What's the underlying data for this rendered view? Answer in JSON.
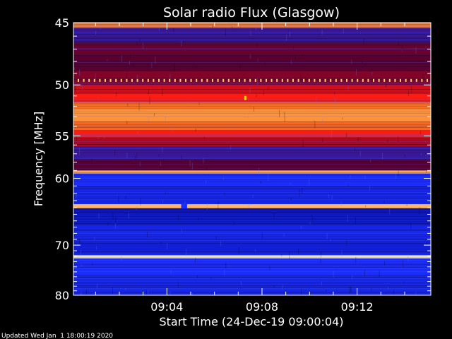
{
  "chart_data": {
    "type": "heatmap",
    "title": "Solar radio Flux (Glasgow)",
    "xlabel": "Start Time (24-Dec-19 09:00:04)",
    "ylabel": "Frequency [MHz]",
    "y_ticks": [
      45,
      50,
      55,
      60,
      70,
      80
    ],
    "x_ticks": [
      "09:04",
      "09:08",
      "09:12"
    ],
    "x_tick_minutes": [
      4,
      8,
      12
    ],
    "xlim_minutes": [
      0.07,
      15.1
    ],
    "y_scale": "reciprocal",
    "ylim": [
      45,
      80
    ],
    "colormap": [
      "#00007a",
      "#1a2cff",
      "#5a0030",
      "#ff1010",
      "#ff7a1a",
      "#fff0b0"
    ],
    "bands": [
      {
        "from": 45.0,
        "to": 45.4,
        "level": 0.8
      },
      {
        "from": 45.4,
        "to": 46.5,
        "level": 0.3
      },
      {
        "from": 46.5,
        "to": 47.5,
        "level": 0.42
      },
      {
        "from": 47.5,
        "to": 48.8,
        "level": 0.4
      },
      {
        "from": 48.8,
        "to": 50.0,
        "level": 0.45
      },
      {
        "from": 50.0,
        "to": 50.8,
        "level": 0.55
      },
      {
        "from": 50.8,
        "to": 51.6,
        "level": 0.62
      },
      {
        "from": 51.6,
        "to": 52.2,
        "level": 0.78
      },
      {
        "from": 52.2,
        "to": 53.5,
        "level": 0.84
      },
      {
        "from": 53.5,
        "to": 54.4,
        "level": 0.76
      },
      {
        "from": 54.4,
        "to": 55.2,
        "level": 0.62
      },
      {
        "from": 55.2,
        "to": 56.2,
        "level": 0.5
      },
      {
        "from": 56.2,
        "to": 57.6,
        "level": 0.3
      },
      {
        "from": 57.6,
        "to": 59.0,
        "level": 0.4
      },
      {
        "from": 59.0,
        "to": 59.4,
        "level": 0.88
      },
      {
        "from": 59.4,
        "to": 61.0,
        "level": 0.2
      },
      {
        "from": 61.0,
        "to": 63.5,
        "level": 0.16
      },
      {
        "from": 63.5,
        "to": 64.1,
        "level": 0.9
      },
      {
        "from": 64.1,
        "to": 66.5,
        "level": 0.1
      },
      {
        "from": 66.5,
        "to": 69.0,
        "level": 0.17
      },
      {
        "from": 69.0,
        "to": 71.8,
        "level": 0.14
      },
      {
        "from": 71.8,
        "to": 72.4,
        "level": 1.0
      },
      {
        "from": 72.4,
        "to": 76.0,
        "level": 0.2
      },
      {
        "from": 76.0,
        "to": 80.0,
        "level": 0.16
      }
    ],
    "dotted_line": {
      "frequency": 49.6,
      "color": "#ffd070"
    },
    "spot": {
      "minute": 7.3,
      "frequency": 51.2,
      "color": "#ffd000"
    },
    "gap": {
      "minute_from": 4.6,
      "minute_to": 4.85,
      "frequency": 63.8
    }
  },
  "footer": {
    "updated": "Updated Wed Jan  1 18:00:19 2020"
  }
}
